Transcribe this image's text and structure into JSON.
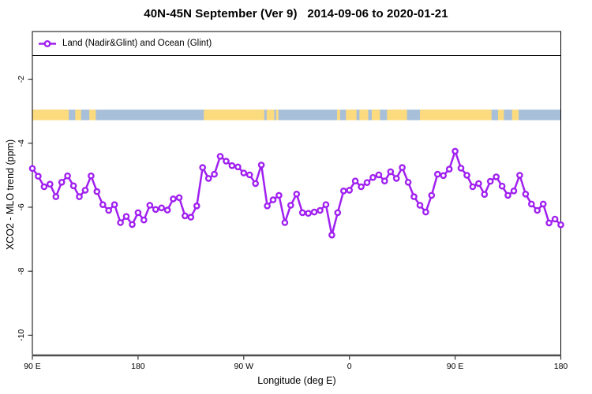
{
  "chart_data": {
    "type": "line",
    "title": "40N-45N September (Ver 9)   2014-09-06 to 2020-01-21",
    "xlabel": "Longitude (deg E)",
    "ylabel": "XCO2 - MLO trend (ppm)",
    "legend_label": "Land (Nadir&Glint) and Ocean (Glint)",
    "legend_position": "top-left-inside-full-width-box",
    "grid": false,
    "xlim": [
      90,
      540
    ],
    "ylim": [
      -10.63,
      -0.51
    ],
    "x_ticks": [
      {
        "pos": 90,
        "label": "90 E"
      },
      {
        "pos": 180,
        "label": "180"
      },
      {
        "pos": 270,
        "label": "90 W"
      },
      {
        "pos": 360,
        "label": "0"
      },
      {
        "pos": 450,
        "label": "90 E"
      },
      {
        "pos": 540,
        "label": "180"
      }
    ],
    "y_ticks": [
      {
        "value": -2,
        "label": "-2"
      },
      {
        "value": -4,
        "label": "-4"
      },
      {
        "value": -6,
        "label": "-6"
      },
      {
        "value": -8,
        "label": "-8"
      },
      {
        "value": -10,
        "label": "-10"
      }
    ],
    "x_start": 90,
    "x_step": 5,
    "series": [
      {
        "name": "Land (Nadir&Glint) and Ocean (Glint)",
        "color": "#A020F0",
        "marker": "open-circle",
        "values": [
          -4.79,
          -5.03,
          -5.36,
          -5.28,
          -5.67,
          -5.22,
          -5.02,
          -5.33,
          -5.67,
          -5.47,
          -5.02,
          -5.51,
          -5.92,
          -6.1,
          -5.92,
          -6.48,
          -6.29,
          -6.54,
          -6.17,
          -6.4,
          -5.94,
          -6.07,
          -6.02,
          -6.09,
          -5.74,
          -5.7,
          -6.27,
          -6.31,
          -5.96,
          -4.76,
          -5.1,
          -4.97,
          -4.41,
          -4.56,
          -4.7,
          -4.74,
          -4.93,
          -4.99,
          -5.26,
          -4.68,
          -5.96,
          -5.77,
          -5.63,
          -6.48,
          -5.94,
          -5.59,
          -6.17,
          -6.19,
          -6.15,
          -6.1,
          -5.92,
          -6.87,
          -6.17,
          -5.49,
          -5.47,
          -5.18,
          -5.36,
          -5.23,
          -5.07,
          -4.99,
          -5.18,
          -4.89,
          -5.1,
          -4.76,
          -5.22,
          -5.67,
          -5.94,
          -6.15,
          -5.63,
          -4.97,
          -5.01,
          -4.81,
          -4.25,
          -4.78,
          -5.0,
          -5.36,
          -5.26,
          -5.6,
          -5.19,
          -5.05,
          -5.34,
          -5.63,
          -5.49,
          -5.0,
          -5.59,
          -5.9,
          -6.1,
          -5.9,
          -6.49,
          -6.37,
          -6.55
        ]
      }
    ],
    "map_strip": {
      "ocean_color": "#A8BFDA",
      "land_color": "#FCDB7E",
      "value_top": -2.95,
      "value_bottom": -3.28,
      "land_segments": [
        [
          90,
          121
        ],
        [
          126.5,
          131.5
        ],
        [
          138.5,
          144
        ],
        [
          236,
          287.5
        ],
        [
          289.5,
          296
        ],
        [
          297.5,
          299.5
        ],
        [
          349.5,
          352
        ],
        [
          357,
          366
        ],
        [
          368.5,
          376
        ],
        [
          379,
          386
        ],
        [
          392,
          409
        ],
        [
          420,
          481
        ],
        [
          486.5,
          491.5
        ],
        [
          498.5,
          504
        ]
      ]
    },
    "colors": {
      "axis_box": "#000000",
      "bottom_axis": "#4d4d4d",
      "tick": "#333333"
    }
  }
}
